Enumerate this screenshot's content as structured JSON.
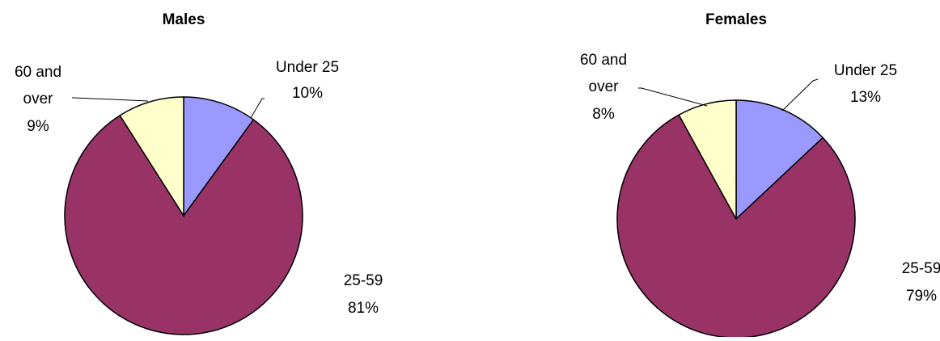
{
  "chart_data": [
    {
      "type": "pie",
      "title": "Males",
      "slices": [
        {
          "label_lines": [
            "Under 25",
            "10%"
          ],
          "value": 10,
          "color": "#9999ff"
        },
        {
          "label_lines": [
            "25-59",
            "81%"
          ],
          "value": 81,
          "color": "#993366"
        },
        {
          "label_lines": [
            "60 and",
            "over",
            "9%"
          ],
          "value": 9,
          "color": "#ffffcc"
        }
      ]
    },
    {
      "type": "pie",
      "title": "Females",
      "slices": [
        {
          "label_lines": [
            "Under 25",
            "13%"
          ],
          "value": 13,
          "color": "#9999ff"
        },
        {
          "label_lines": [
            "25-59",
            "79%"
          ],
          "value": 79,
          "color": "#993366"
        },
        {
          "label_lines": [
            "60 and",
            "over",
            "8%"
          ],
          "value": 8,
          "color": "#ffffcc"
        }
      ]
    }
  ]
}
